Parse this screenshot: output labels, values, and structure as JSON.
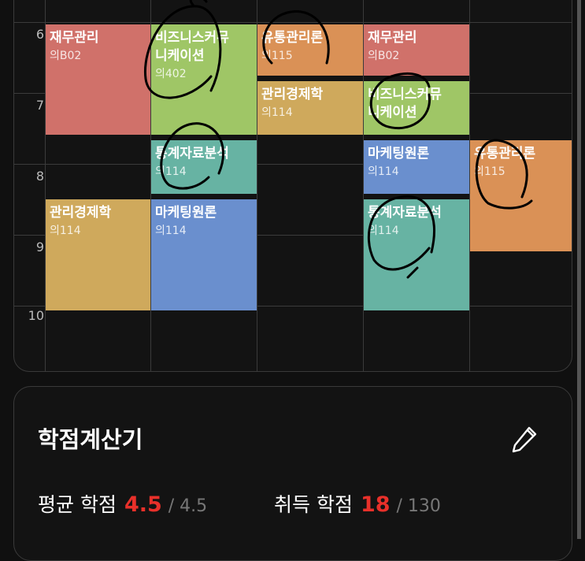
{
  "timetable": {
    "hours": [
      "6",
      "7",
      "8",
      "9",
      "10"
    ],
    "courses": [
      {
        "name": "재무관리",
        "room": "의B02",
        "color": "#d0716a"
      },
      {
        "name": "관리경제학",
        "room": "의114",
        "color": "#cfa95c"
      },
      {
        "name": "비즈니스커뮤\n니케이션",
        "room": "의402",
        "color": "#9fc666"
      },
      {
        "name": "통계자료분석",
        "room": "의114",
        "color": "#67b3a3"
      },
      {
        "name": "마케팅원론",
        "room": "의114",
        "color": "#6a8fce"
      },
      {
        "name": "유통관리론",
        "room": "의115",
        "color": "#da9156"
      },
      {
        "name": "관리경제학",
        "room": "의114",
        "color": "#cfa95c"
      },
      {
        "name": "재무관리",
        "room": "의B02",
        "color": "#d0716a"
      },
      {
        "name": "비즈니스커뮤\n니케이션",
        "room": "",
        "color": "#9fc666"
      },
      {
        "name": "마케팅원론",
        "room": "의114",
        "color": "#6a8fce"
      },
      {
        "name": "통계자료분석",
        "room": "의114",
        "color": "#67b3a3"
      },
      {
        "name": "유통관리론",
        "room": "의115",
        "color": "#da9156"
      }
    ]
  },
  "calculator": {
    "title": "학점계산기",
    "edit_icon": "pencil-icon",
    "avg_label": "평균 학점",
    "avg_value": "4.5",
    "avg_max": "/ 4.5",
    "earned_label": "취득 학점",
    "earned_value": "18",
    "earned_max": "/ 130",
    "accent": "#e8302a"
  }
}
